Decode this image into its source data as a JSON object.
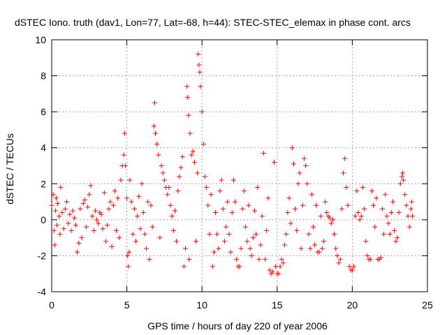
{
  "chart_data": {
    "type": "scatter",
    "title": "dSTEC Iono. truth (dav1, Lon=77, Lat=-68, h=44): STEC-STEC_elemax in phase cont. arcs",
    "xlabel": "GPS time / hours of day 220 of year 2006",
    "ylabel": "dSTEC  / TECUs",
    "xlim": [
      0,
      25
    ],
    "ylim": [
      -4,
      10
    ],
    "x_ticks": [
      0,
      5,
      10,
      15,
      20,
      25
    ],
    "y_ticks": [
      -4,
      -2,
      0,
      2,
      4,
      6,
      8,
      10
    ],
    "x_tick_labels": [
      "0",
      "5",
      "10",
      "15",
      "20",
      "25"
    ],
    "y_tick_labels": [
      "-4",
      "-2",
      "0",
      "2",
      "4",
      "6",
      "8",
      "10"
    ],
    "grid": true,
    "marker": "+",
    "color": "#ff0000",
    "series": [
      {
        "name": "dSTEC",
        "points": [
          [
            0.0,
            0.8
          ],
          [
            0.1,
            1.4
          ],
          [
            0.15,
            -0.6
          ],
          [
            0.2,
            -1.4
          ],
          [
            0.25,
            0.5
          ],
          [
            0.3,
            1.2
          ],
          [
            0.35,
            -0.3
          ],
          [
            0.4,
            0.9
          ],
          [
            0.5,
            0.2
          ],
          [
            0.55,
            -0.8
          ],
          [
            0.6,
            1.8
          ],
          [
            0.7,
            0.4
          ],
          [
            0.8,
            -0.5
          ],
          [
            0.9,
            0.6
          ],
          [
            1.0,
            1.0
          ],
          [
            1.1,
            -0.2
          ],
          [
            1.2,
            0.3
          ],
          [
            1.3,
            -0.6
          ],
          [
            1.4,
            0.5
          ],
          [
            1.5,
            0.1
          ],
          [
            1.6,
            -0.3
          ],
          [
            1.7,
            -1.8
          ],
          [
            1.8,
            -1.3
          ],
          [
            1.9,
            0.6
          ],
          [
            2.0,
            -1.0
          ],
          [
            2.1,
            0.9
          ],
          [
            2.2,
            1.1
          ],
          [
            2.3,
            -0.4
          ],
          [
            2.4,
            0.7
          ],
          [
            2.5,
            1.4
          ],
          [
            2.6,
            1.9
          ],
          [
            2.7,
            0.2
          ],
          [
            2.8,
            -0.6
          ],
          [
            2.9,
            0.5
          ],
          [
            3.0,
            0.0
          ],
          [
            3.1,
            -0.2
          ],
          [
            3.2,
            0.4
          ],
          [
            3.3,
            0.3
          ],
          [
            3.4,
            -0.5
          ],
          [
            3.5,
            1.5
          ],
          [
            3.6,
            -1.2
          ],
          [
            3.7,
            -0.3
          ],
          [
            3.8,
            0.6
          ],
          [
            3.9,
            1.0
          ],
          [
            4.0,
            -1.5
          ],
          [
            4.1,
            0.8
          ],
          [
            4.2,
            1.6
          ],
          [
            4.3,
            -0.6
          ],
          [
            4.4,
            1.2
          ],
          [
            4.5,
            -1.0
          ],
          [
            4.6,
            2.2
          ],
          [
            4.7,
            3.0
          ],
          [
            4.8,
            3.6
          ],
          [
            4.85,
            4.8
          ],
          [
            4.9,
            3.0
          ],
          [
            5.0,
            1.2
          ],
          [
            5.05,
            -2.0
          ],
          [
            5.1,
            -2.6
          ],
          [
            5.15,
            -1.8
          ],
          [
            5.2,
            2.2
          ],
          [
            5.3,
            1.0
          ],
          [
            5.4,
            -0.8
          ],
          [
            5.5,
            0.6
          ],
          [
            5.6,
            -1.2
          ],
          [
            5.7,
            0.2
          ],
          [
            5.8,
            1.3
          ],
          [
            5.9,
            -0.5
          ],
          [
            6.0,
            2.0
          ],
          [
            6.1,
            0.4
          ],
          [
            6.2,
            -0.8
          ],
          [
            6.3,
            -1.6
          ],
          [
            6.4,
            1.0
          ],
          [
            6.5,
            -2.2
          ],
          [
            6.6,
            0.8
          ],
          [
            6.7,
            -0.4
          ],
          [
            6.8,
            5.2
          ],
          [
            6.85,
            6.5
          ],
          [
            6.9,
            4.8
          ],
          [
            7.0,
            4.2
          ],
          [
            7.1,
            3.6
          ],
          [
            7.2,
            -1.0
          ],
          [
            7.3,
            3.0
          ],
          [
            7.4,
            2.6
          ],
          [
            7.5,
            2.2
          ],
          [
            7.6,
            1.8
          ],
          [
            7.7,
            1.4
          ],
          [
            7.8,
            1.8
          ],
          [
            7.9,
            0.8
          ],
          [
            8.0,
            0.2
          ],
          [
            8.1,
            -0.6
          ],
          [
            8.2,
            0.5
          ],
          [
            8.3,
            -1.2
          ],
          [
            8.4,
            1.6
          ],
          [
            8.5,
            2.4
          ],
          [
            8.6,
            2.9
          ],
          [
            8.7,
            3.5
          ],
          [
            8.8,
            -2.6
          ],
          [
            8.9,
            -1.6
          ],
          [
            9.0,
            7.4
          ],
          [
            9.05,
            6.8
          ],
          [
            9.1,
            5.8
          ],
          [
            9.15,
            -2.2
          ],
          [
            9.2,
            4.8
          ],
          [
            9.3,
            3.6
          ],
          [
            9.4,
            3.8
          ],
          [
            9.5,
            3.2
          ],
          [
            9.6,
            -1.2
          ],
          [
            9.7,
            2.6
          ],
          [
            9.75,
            9.2
          ],
          [
            9.8,
            8.6
          ],
          [
            9.85,
            8.2
          ],
          [
            9.9,
            7.4
          ],
          [
            10.0,
            6.0
          ],
          [
            10.1,
            4.2
          ],
          [
            10.2,
            2.4
          ],
          [
            10.3,
            1.8
          ],
          [
            10.4,
            0.8
          ],
          [
            10.5,
            -0.8
          ],
          [
            10.6,
            1.4
          ],
          [
            10.7,
            -2.6
          ],
          [
            10.8,
            -1.8
          ],
          [
            10.9,
            0.4
          ],
          [
            11.0,
            -0.8
          ],
          [
            11.1,
            -1.6
          ],
          [
            11.2,
            1.6
          ],
          [
            11.3,
            2.2
          ],
          [
            11.4,
            0.6
          ],
          [
            11.5,
            -1.2
          ],
          [
            11.6,
            -0.4
          ],
          [
            11.7,
            1.0
          ],
          [
            11.8,
            -0.8
          ],
          [
            11.9,
            -1.8
          ],
          [
            12.0,
            0.4
          ],
          [
            12.1,
            2.2
          ],
          [
            12.2,
            1.0
          ],
          [
            12.3,
            -2.2
          ],
          [
            12.4,
            -2.6
          ],
          [
            12.5,
            -2.6
          ],
          [
            12.6,
            -1.6
          ],
          [
            12.7,
            0.6
          ],
          [
            12.8,
            1.6
          ],
          [
            12.9,
            -0.4
          ],
          [
            13.0,
            -1.2
          ],
          [
            13.1,
            0.8
          ],
          [
            13.2,
            -1.6
          ],
          [
            13.3,
            -2.0
          ],
          [
            13.4,
            -1.0
          ],
          [
            13.5,
            0.5
          ],
          [
            13.6,
            -0.8
          ],
          [
            13.7,
            1.8
          ],
          [
            13.8,
            -2.2
          ],
          [
            13.9,
            -1.4
          ],
          [
            14.0,
            0.2
          ],
          [
            14.1,
            3.7
          ],
          [
            14.2,
            -2.2
          ],
          [
            14.3,
            -0.6
          ],
          [
            14.4,
            1.2
          ],
          [
            14.5,
            -2.8
          ],
          [
            14.6,
            -3.0
          ],
          [
            14.7,
            -2.9
          ],
          [
            14.8,
            3.2
          ],
          [
            14.9,
            -2.6
          ],
          [
            15.0,
            -3.0
          ],
          [
            15.1,
            -3.0
          ],
          [
            15.2,
            -2.6
          ],
          [
            15.3,
            -2.2
          ],
          [
            15.4,
            -2.4
          ],
          [
            15.5,
            -1.4
          ],
          [
            15.6,
            -0.8
          ],
          [
            15.7,
            0.4
          ],
          [
            15.8,
            1.2
          ],
          [
            15.9,
            -0.2
          ],
          [
            16.0,
            4.0
          ],
          [
            16.1,
            3.1
          ],
          [
            16.2,
            0.6
          ],
          [
            16.3,
            -0.6
          ],
          [
            16.4,
            2.0
          ],
          [
            16.5,
            2.6
          ],
          [
            16.6,
            -1.6
          ],
          [
            16.7,
            0.8
          ],
          [
            16.8,
            3.4
          ],
          [
            16.9,
            3.0
          ],
          [
            17.0,
            2.0
          ],
          [
            17.1,
            -0.8
          ],
          [
            17.2,
            -1.6
          ],
          [
            17.3,
            1.4
          ],
          [
            17.4,
            -0.4
          ],
          [
            17.5,
            -1.4
          ],
          [
            17.6,
            0.8
          ],
          [
            17.7,
            -1.8
          ],
          [
            17.8,
            -1.8
          ],
          [
            17.9,
            0.2
          ],
          [
            18.0,
            -1.6
          ],
          [
            18.1,
            -1.2
          ],
          [
            18.2,
            1.0
          ],
          [
            18.3,
            0.4
          ],
          [
            18.4,
            0.2
          ],
          [
            18.5,
            0.1
          ],
          [
            18.6,
            -0.2
          ],
          [
            18.7,
            0.0
          ],
          [
            18.8,
            -0.8
          ],
          [
            18.9,
            -1.6
          ],
          [
            19.0,
            -2.0
          ],
          [
            19.1,
            -2.4
          ],
          [
            19.2,
            -2.2
          ],
          [
            19.3,
            0.6
          ],
          [
            19.4,
            2.6
          ],
          [
            19.5,
            3.4
          ],
          [
            19.6,
            1.8
          ],
          [
            19.7,
            0.8
          ],
          [
            19.8,
            -2.6
          ],
          [
            19.9,
            -2.8
          ],
          [
            20.0,
            -2.8
          ],
          [
            20.1,
            -2.6
          ],
          [
            20.2,
            0.2
          ],
          [
            20.3,
            1.6
          ],
          [
            20.4,
            0.4
          ],
          [
            20.5,
            0.0
          ],
          [
            20.6,
            0.2
          ],
          [
            20.7,
            1.8
          ],
          [
            20.8,
            0.6
          ],
          [
            20.9,
            -1.2
          ],
          [
            21.0,
            -2.0
          ],
          [
            21.1,
            -2.2
          ],
          [
            21.2,
            -2.2
          ],
          [
            21.3,
            1.6
          ],
          [
            21.4,
            0.8
          ],
          [
            21.5,
            -0.4
          ],
          [
            21.6,
            1.2
          ],
          [
            21.7,
            -2.2
          ],
          [
            21.8,
            -2.2
          ],
          [
            21.9,
            -2.1
          ],
          [
            22.0,
            0.6
          ],
          [
            22.1,
            -0.8
          ],
          [
            22.2,
            1.4
          ],
          [
            22.3,
            0.2
          ],
          [
            22.4,
            -0.2
          ],
          [
            22.5,
            -0.8
          ],
          [
            22.6,
            0.4
          ],
          [
            22.7,
            1.0
          ],
          [
            22.8,
            -0.6
          ],
          [
            22.9,
            -1.2
          ],
          [
            23.0,
            -1.0
          ],
          [
            23.1,
            0.4
          ],
          [
            23.2,
            2.0
          ],
          [
            23.3,
            2.4
          ],
          [
            23.35,
            2.6
          ],
          [
            23.4,
            2.2
          ],
          [
            23.5,
            1.4
          ],
          [
            23.6,
            0.8
          ],
          [
            23.7,
            0.2
          ],
          [
            23.8,
            -0.4
          ],
          [
            23.9,
            0.6
          ],
          [
            23.95,
            1.0
          ],
          [
            24.0,
            0.2
          ]
        ]
      }
    ]
  }
}
